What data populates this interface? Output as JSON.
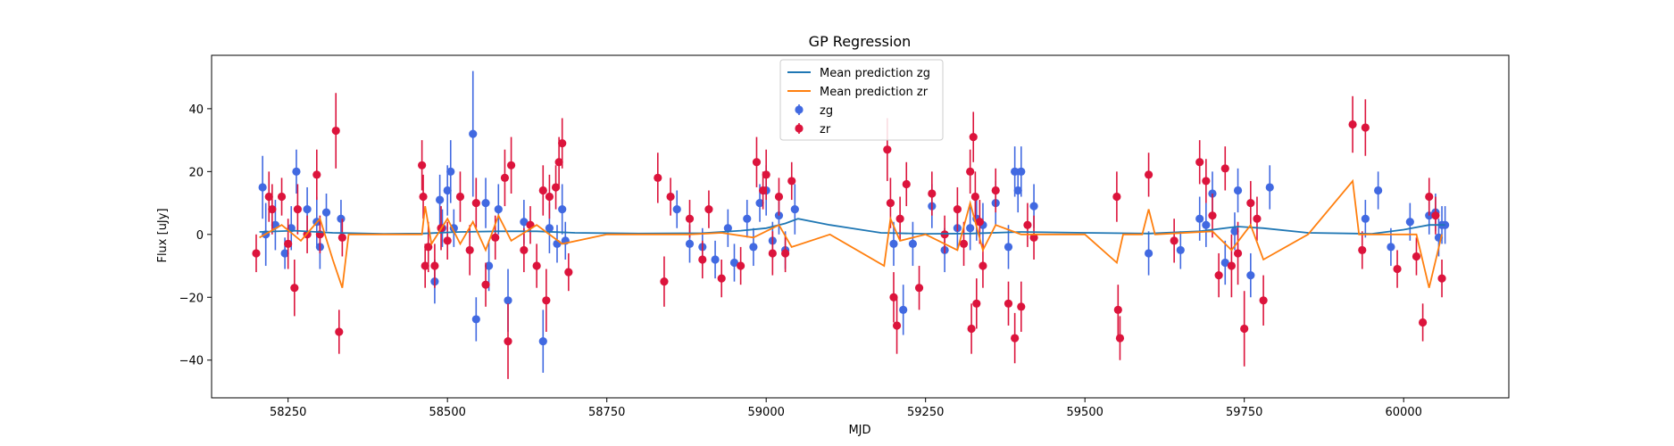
{
  "chart_data": {
    "type": "scatter",
    "title": "GP Regression",
    "xlabel": "MJD",
    "ylabel": "Flux [uJy]",
    "xlim": [
      58130,
      60165
    ],
    "ylim": [
      -52,
      57
    ],
    "xticks": [
      58250,
      58500,
      58750,
      59000,
      59250,
      59500,
      59750,
      60000
    ],
    "yticks": [
      -40,
      -20,
      0,
      20,
      40
    ],
    "grid": false,
    "legend_position": "top-center",
    "series": [
      {
        "name": "Mean prediction zg",
        "kind": "line",
        "color": "#1f77b4",
        "x": [
          58205,
          58260,
          58320,
          58400,
          58460,
          58520,
          58580,
          58640,
          58700,
          58800,
          58900,
          58960,
          59000,
          59030,
          59050,
          59100,
          59180,
          59250,
          59320,
          59400,
          59500,
          59600,
          59680,
          59740,
          59780,
          59850,
          59950,
          60000,
          60040,
          60065
        ],
        "y": [
          0.8,
          1.2,
          0.5,
          0.2,
          0.3,
          0.8,
          1.0,
          1.0,
          0.5,
          0.3,
          0.4,
          1.2,
          2.0,
          3.5,
          5.0,
          3.0,
          0.5,
          0.2,
          0.3,
          0.8,
          0.5,
          0.3,
          1.0,
          2.5,
          2.0,
          0.5,
          0.2,
          1.5,
          3.0,
          3.0
        ]
      },
      {
        "name": "Mean prediction zr",
        "kind": "line",
        "color": "#ff7f0e",
        "x": [
          58205,
          58240,
          58270,
          58300,
          58320,
          58335,
          58345,
          58400,
          58460,
          58465,
          58475,
          58500,
          58520,
          58540,
          58560,
          58580,
          58600,
          58640,
          58680,
          58750,
          58830,
          58880,
          58930,
          58980,
          59020,
          59040,
          59100,
          59185,
          59195,
          59210,
          59250,
          59300,
          59320,
          59340,
          59360,
          59400,
          59430,
          59500,
          59550,
          59560,
          59590,
          59600,
          59610,
          59700,
          59730,
          59760,
          59780,
          59850,
          59920,
          59930,
          59950,
          60020,
          60040,
          60060
        ],
        "y": [
          -1,
          3,
          -2,
          5,
          -8,
          -17,
          0,
          0,
          0,
          9,
          -3,
          5,
          -3,
          4,
          -5,
          6,
          -2,
          3,
          -3,
          0,
          0,
          0,
          0.5,
          -1,
          3,
          -4,
          0,
          -10,
          5,
          -2,
          0,
          -5,
          10,
          -5,
          3,
          0,
          0,
          0,
          -9,
          0,
          0,
          8,
          0,
          1,
          -5,
          3,
          -8,
          0,
          17,
          0,
          0,
          0,
          -17,
          0
        ]
      },
      {
        "name": "zg",
        "kind": "errorbar",
        "color": "#4169e1",
        "x": [
          58210,
          58215,
          58230,
          58245,
          58255,
          58263,
          58280,
          58295,
          58300,
          58310,
          58333,
          58480,
          58488,
          58492,
          58500,
          58505,
          58510,
          58540,
          58545,
          58560,
          58565,
          58580,
          58595,
          58620,
          58650,
          58660,
          58672,
          58680,
          58685,
          58860,
          58880,
          58900,
          58920,
          58940,
          58950,
          58970,
          58980,
          58990,
          59000,
          59010,
          59020,
          59030,
          59045,
          59200,
          59215,
          59230,
          59260,
          59280,
          59300,
          59320,
          59330,
          59340,
          59360,
          59380,
          59390,
          59395,
          59400,
          59420,
          59600,
          59650,
          59680,
          59690,
          59700,
          59720,
          59735,
          59740,
          59760,
          59790,
          59940,
          59960,
          59980,
          60010,
          60040,
          60050,
          60055,
          60060,
          60065
        ],
        "y": [
          15,
          0,
          3,
          -6,
          2,
          20,
          8,
          4,
          -4,
          7,
          5,
          -15,
          11,
          2,
          14,
          20,
          2,
          32,
          -27,
          10,
          -10,
          8,
          -21,
          4,
          -34,
          2,
          -3,
          8,
          -2,
          8,
          -3,
          -4,
          -8,
          2,
          -9,
          5,
          -4,
          10,
          14,
          -2,
          6,
          -5,
          8,
          -3,
          -24,
          -3,
          9,
          -5,
          2,
          2,
          5,
          3,
          10,
          -4,
          20,
          14,
          20,
          9,
          -6,
          -5,
          5,
          3,
          13,
          -9,
          1,
          14,
          -13,
          15,
          5,
          14,
          -4,
          4,
          6,
          7,
          -1,
          3,
          3
        ],
        "yerr": [
          10,
          10,
          8,
          5,
          7,
          7,
          7,
          8,
          7,
          6,
          6,
          7,
          8,
          6,
          8,
          10,
          6,
          20,
          7,
          8,
          8,
          8,
          10,
          7,
          10,
          8,
          6,
          8,
          6,
          6,
          6,
          6,
          6,
          6,
          6,
          6,
          6,
          6,
          8,
          6,
          6,
          6,
          8,
          7,
          8,
          7,
          7,
          7,
          7,
          7,
          7,
          7,
          7,
          7,
          8,
          7,
          8,
          7,
          7,
          6,
          7,
          7,
          7,
          7,
          6,
          7,
          7,
          7,
          6,
          6,
          6,
          6,
          6,
          6,
          6,
          6,
          6
        ]
      },
      {
        "name": "zr",
        "kind": "errorbar",
        "color": "#dc143c",
        "x": [
          58200,
          58220,
          58225,
          58240,
          58250,
          58260,
          58265,
          58280,
          58295,
          58300,
          58325,
          58330,
          58335,
          58460,
          58462,
          58465,
          58470,
          58480,
          58490,
          58500,
          58520,
          58535,
          58545,
          58560,
          58575,
          58590,
          58595,
          58600,
          58620,
          58630,
          58640,
          58650,
          58655,
          58660,
          58670,
          58675,
          58680,
          58690,
          58830,
          58840,
          58850,
          58880,
          58900,
          58910,
          58930,
          58960,
          58985,
          58995,
          59000,
          59010,
          59020,
          59030,
          59040,
          59190,
          59195,
          59200,
          59205,
          59210,
          59220,
          59240,
          59260,
          59280,
          59300,
          59310,
          59320,
          59322,
          59325,
          59328,
          59330,
          59335,
          59340,
          59360,
          59380,
          59390,
          59400,
          59410,
          59420,
          59550,
          59552,
          59555,
          59600,
          59640,
          59680,
          59690,
          59700,
          59710,
          59720,
          59730,
          59740,
          59750,
          59760,
          59770,
          59780,
          59920,
          59935,
          59940,
          59990,
          60020,
          60030,
          60040,
          60050,
          60060
        ],
        "y": [
          -6,
          12,
          8,
          12,
          -3,
          -17,
          8,
          0,
          19,
          0,
          33,
          -31,
          -1,
          22,
          12,
          -10,
          -4,
          -10,
          2,
          -2,
          12,
          -5,
          10,
          -16,
          -1,
          18,
          -34,
          22,
          -5,
          3,
          -10,
          14,
          -21,
          12,
          15,
          23,
          29,
          -12,
          18,
          -15,
          12,
          5,
          -8,
          8,
          -14,
          -10,
          23,
          14,
          19,
          -6,
          12,
          -6,
          17,
          27,
          10,
          -20,
          -29,
          5,
          16,
          -17,
          13,
          0,
          8,
          -3,
          20,
          -30,
          31,
          12,
          -22,
          4,
          -10,
          14,
          -22,
          -33,
          -23,
          3,
          -1,
          12,
          -24,
          -33,
          19,
          -2,
          23,
          17,
          6,
          -13,
          21,
          -10,
          -6,
          -30,
          10,
          5,
          -21,
          35,
          -5,
          34,
          -11,
          -7,
          -28,
          12,
          6,
          -14
        ],
        "yerr": [
          6,
          8,
          8,
          6,
          8,
          9,
          8,
          6,
          8,
          6,
          12,
          7,
          6,
          8,
          7,
          7,
          8,
          7,
          7,
          6,
          8,
          8,
          8,
          7,
          7,
          9,
          12,
          9,
          7,
          6,
          7,
          8,
          10,
          7,
          7,
          8,
          8,
          6,
          8,
          8,
          6,
          6,
          6,
          6,
          6,
          6,
          8,
          6,
          8,
          7,
          6,
          6,
          6,
          10,
          8,
          8,
          9,
          7,
          7,
          7,
          7,
          6,
          7,
          7,
          7,
          8,
          8,
          8,
          8,
          7,
          7,
          7,
          7,
          8,
          8,
          7,
          7,
          8,
          8,
          7,
          7,
          7,
          7,
          7,
          7,
          7,
          7,
          10,
          10,
          12,
          7,
          7,
          8,
          9,
          6,
          9,
          6,
          6,
          6,
          6,
          6,
          6
        ]
      }
    ]
  }
}
